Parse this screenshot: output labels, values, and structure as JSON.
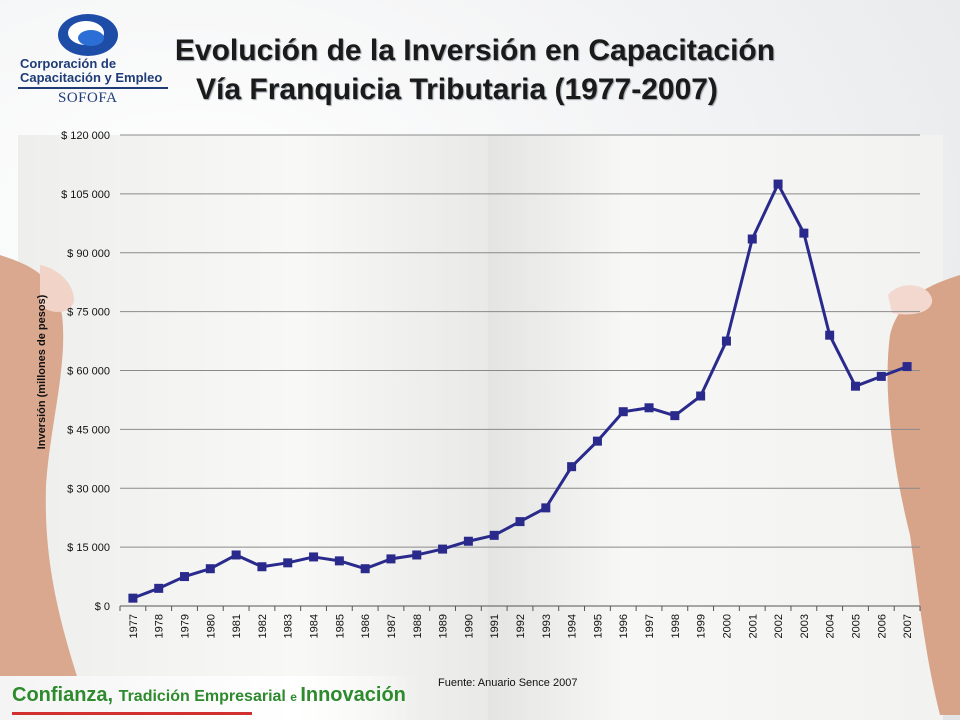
{
  "logo": {
    "line1": "Corporación de",
    "line2": "Capacitación y Empleo",
    "line3": "SOFOFA"
  },
  "title": {
    "line1": "Evolución de la Inversión en Capacitación",
    "line2": "Vía Franquicia Tributaria (1977-2007)"
  },
  "chart_data": {
    "type": "line",
    "ylabel": "Inversión (millones de pesos)",
    "xlabel": "",
    "ylim": [
      0,
      120000
    ],
    "y_ticks": [
      0,
      15000,
      30000,
      45000,
      60000,
      75000,
      90000,
      105000,
      120000
    ],
    "y_tick_labels": [
      "$ 0",
      "$ 15 000",
      "$ 30 000",
      "$ 45 000",
      "$ 60 000",
      "$ 75 000",
      "$ 90 000",
      "$ 105 000",
      "$ 120 000"
    ],
    "categories": [
      "1977",
      "1978",
      "1979",
      "1980",
      "1981",
      "1982",
      "1983",
      "1984",
      "1985",
      "1986",
      "1987",
      "1988",
      "1989",
      "1990",
      "1991",
      "1992",
      "1993",
      "1994",
      "1995",
      "1996",
      "1997",
      "1998",
      "1999",
      "2000",
      "2001",
      "2002",
      "2003",
      "2004",
      "2005",
      "2006",
      "2007"
    ],
    "values": [
      2000,
      4500,
      7500,
      9500,
      13000,
      10000,
      11000,
      12500,
      11500,
      9500,
      12000,
      13000,
      14500,
      16500,
      18000,
      21500,
      25000,
      35500,
      42000,
      49500,
      50500,
      48500,
      53500,
      67500,
      93500,
      107500,
      95000,
      69000,
      56000,
      58500,
      61000
    ],
    "grid": true,
    "line_color": "#2a2a8c",
    "marker": "square"
  },
  "source": "Fuente: Anuario Sence 2007",
  "footer": {
    "w1": "Confianza, ",
    "w2": "Tradición Empresarial ",
    "w3": "e ",
    "w4": "Innovación"
  }
}
